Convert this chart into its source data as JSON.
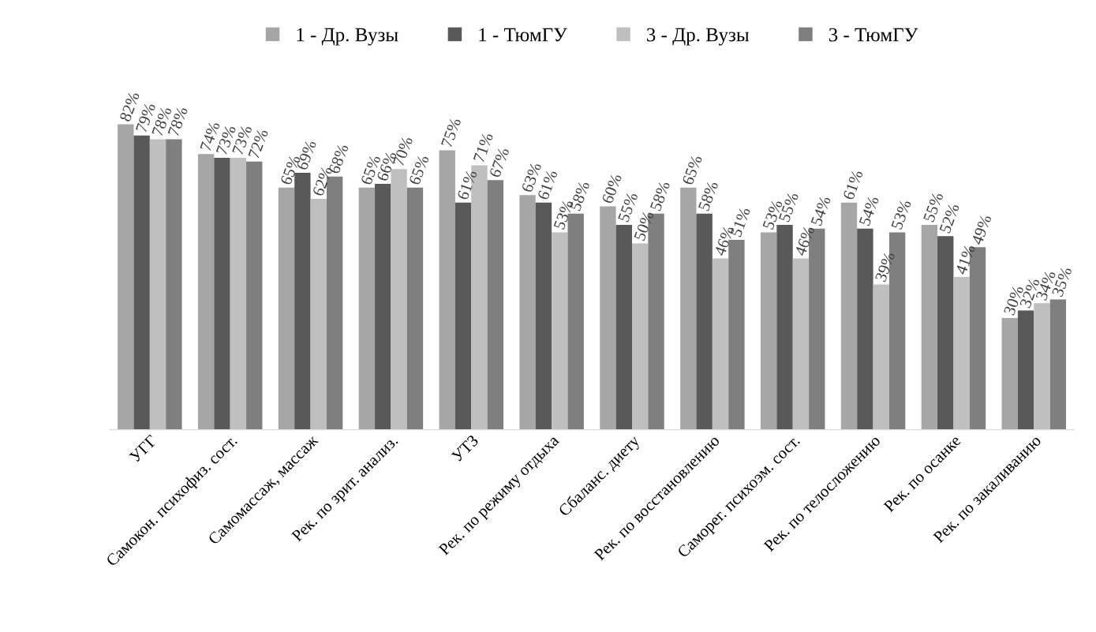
{
  "chart_data": {
    "type": "bar",
    "legend": "top",
    "categories": [
      "УГГ",
      "Самокон. психофиз. сост.",
      "Самомассаж, массаж",
      "Рек. по зрит. анализ.",
      "УТЗ",
      "Рек. по режиму отдыха",
      "Сбаланс. диету",
      "Рек. по восстановлению",
      "Саморег. психоэм. сост.",
      "Рек. по телосложению",
      "Рек. по осанке",
      "Рек. по закаливанию"
    ],
    "series": [
      {
        "name": "1 - Др. Вузы",
        "color": "#a6a6a6",
        "values": [
          82,
          74,
          65,
          65,
          75,
          63,
          60,
          65,
          53,
          61,
          55,
          30
        ],
        "value_labels": [
          "82%",
          "74%",
          "65%",
          "65%",
          "75%",
          "63%",
          "60%",
          "65%",
          "53%",
          "61%",
          "55%",
          "30%"
        ]
      },
      {
        "name": "1 - ТюмГУ",
        "color": "#595959",
        "values": [
          79,
          73,
          69,
          66,
          61,
          61,
          55,
          58,
          55,
          54,
          52,
          32
        ],
        "value_labels": [
          "79%",
          "73%",
          "69%",
          "66%",
          "61%",
          "61%",
          "55%",
          "58%",
          "55%",
          "54%",
          "52%",
          "32%"
        ]
      },
      {
        "name": "3 - Др. Вузы",
        "color": "#bfbfbf",
        "values": [
          78,
          73,
          62,
          70,
          71,
          53,
          50,
          46,
          46,
          39,
          41,
          34
        ],
        "value_labels": [
          "78%",
          "73%",
          "62%",
          "70%",
          "71%",
          "53%",
          "50%",
          "46%",
          "46%",
          "39%",
          "41%",
          "34%"
        ]
      },
      {
        "name": "3 - ТюмГУ",
        "color": "#7f7f7f",
        "values": [
          78,
          72,
          68,
          65,
          67,
          58,
          58,
          51,
          54,
          53,
          49,
          35
        ],
        "value_labels": [
          "78%",
          "72%",
          "68%",
          "65%",
          "67%",
          "58%",
          "58%",
          "51%",
          "54%",
          "53%",
          "49%",
          "35%"
        ]
      }
    ]
  }
}
